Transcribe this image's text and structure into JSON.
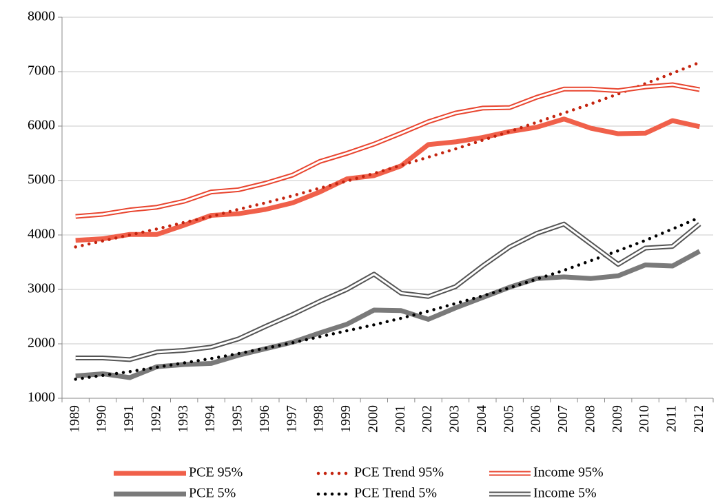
{
  "chart_data": {
    "type": "line",
    "categories": [
      "1989",
      "1990",
      "1991",
      "1992",
      "1993",
      "1994",
      "1995",
      "1996",
      "1997",
      "1998",
      "1999",
      "2000",
      "2001",
      "2002",
      "2003",
      "2004",
      "2005",
      "2006",
      "2007",
      "2008",
      "2009",
      "2010",
      "2011",
      "2012"
    ],
    "series": [
      {
        "name": "PCE 95%",
        "color": "#f0604a",
        "style": "solid",
        "values": [
          3900,
          3930,
          4010,
          4010,
          4180,
          4360,
          4390,
          4470,
          4590,
          4790,
          5030,
          5090,
          5270,
          5660,
          5710,
          5790,
          5900,
          5980,
          6130,
          5960,
          5860,
          5870,
          6100,
          5990
        ]
      },
      {
        "name": "PCE Trend 95%",
        "color": "#c4240f",
        "style": "dotted",
        "values": [
          3780,
          3890,
          4000,
          4110,
          4230,
          4340,
          4470,
          4590,
          4720,
          4860,
          4990,
          5130,
          5280,
          5430,
          5580,
          5740,
          5900,
          6070,
          6240,
          6410,
          6590,
          6780,
          6970,
          7170
        ]
      },
      {
        "name": "Income 95%",
        "color": "#e8452f",
        "style": "double",
        "values": [
          4340,
          4380,
          4460,
          4510,
          4620,
          4790,
          4830,
          4950,
          5100,
          5350,
          5500,
          5670,
          5870,
          6080,
          6240,
          6330,
          6340,
          6530,
          6680,
          6680,
          6650,
          6720,
          6760,
          6670
        ]
      },
      {
        "name": "PCE 5%",
        "color": "#7a7a7a",
        "style": "solid",
        "values": [
          1410,
          1450,
          1380,
          1580,
          1620,
          1640,
          1790,
          1910,
          2030,
          2200,
          2360,
          2620,
          2610,
          2450,
          2660,
          2850,
          3040,
          3200,
          3230,
          3200,
          3250,
          3450,
          3430,
          3700
        ]
      },
      {
        "name": "PCE Trend 5%",
        "color": "#000000",
        "style": "dotted",
        "values": [
          1350,
          1420,
          1490,
          1570,
          1650,
          1730,
          1820,
          1920,
          2020,
          2130,
          2240,
          2350,
          2470,
          2600,
          2740,
          2880,
          3030,
          3190,
          3350,
          3530,
          3710,
          3900,
          4110,
          4320
        ]
      },
      {
        "name": "Income 5%",
        "color": "#555555",
        "style": "double",
        "values": [
          1740,
          1740,
          1710,
          1850,
          1880,
          1940,
          2090,
          2320,
          2540,
          2780,
          3000,
          3280,
          2930,
          2870,
          3050,
          3430,
          3780,
          4030,
          4200,
          3830,
          3460,
          3760,
          3790,
          4200
        ]
      }
    ],
    "ylim": [
      1000,
      8000
    ],
    "yticks": [
      1000,
      2000,
      3000,
      4000,
      5000,
      6000,
      7000,
      8000
    ],
    "grid": true,
    "legend": "bottom"
  }
}
